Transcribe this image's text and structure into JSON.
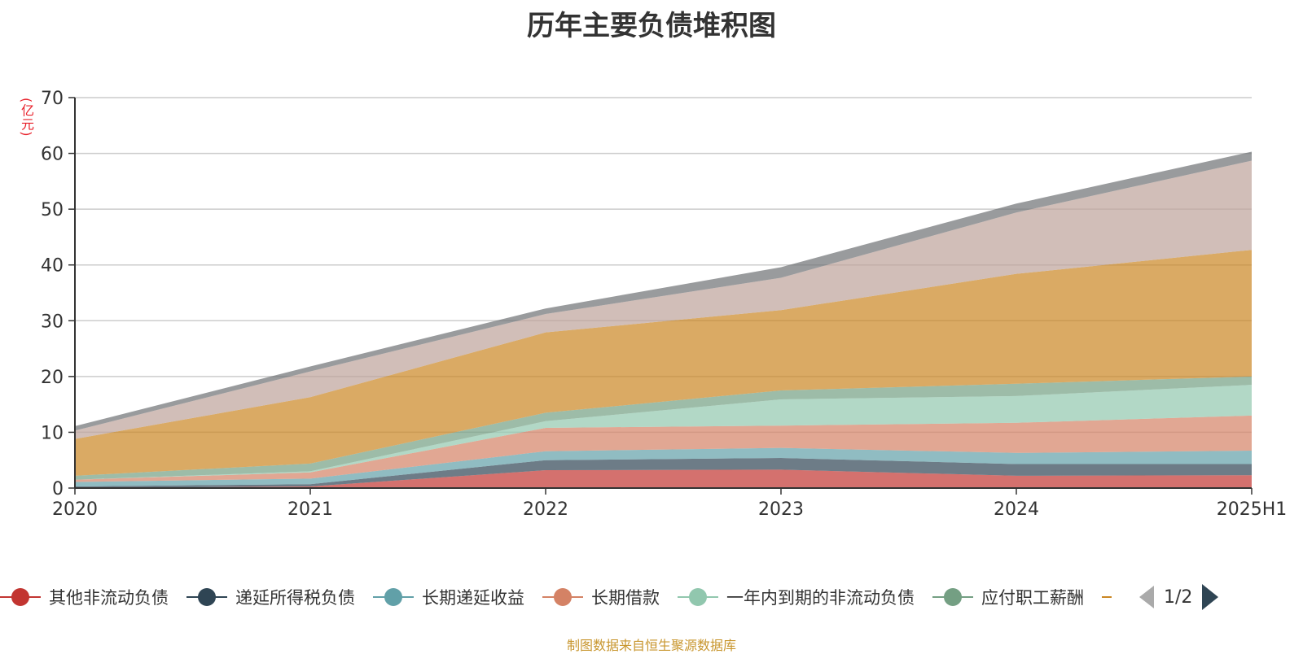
{
  "chart_data": {
    "type": "area",
    "stacked": true,
    "title": "历年主要负债堆积图",
    "ylabel": "(亿元)",
    "categories": [
      "2020",
      "2021",
      "2022",
      "2023",
      "2024",
      "2025H1"
    ],
    "ylim": [
      0,
      70
    ],
    "yticks": [
      0,
      10,
      20,
      30,
      40,
      50,
      60,
      70
    ],
    "grid": true,
    "series": [
      {
        "name": "其他非流动负债",
        "color": "#c23531",
        "values": [
          0.0,
          0.3,
          3.2,
          3.3,
          2.2,
          2.3
        ]
      },
      {
        "name": "递延所得税负债",
        "color": "#2f4554",
        "values": [
          0.3,
          0.4,
          1.8,
          2.1,
          2.1,
          2.0
        ]
      },
      {
        "name": "长期递延收益",
        "color": "#61a0a8",
        "values": [
          0.8,
          1.0,
          1.6,
          1.8,
          2.0,
          2.4
        ]
      },
      {
        "name": "长期借款",
        "color": "#d48265",
        "values": [
          0.4,
          1.1,
          4.2,
          4.0,
          5.4,
          6.3
        ]
      },
      {
        "name": "一年内到期的非流动负债",
        "color": "#91c7ae",
        "values": [
          0.0,
          0.2,
          1.2,
          4.7,
          4.8,
          5.5
        ]
      },
      {
        "name": "应付职工薪酬",
        "color": "#749f83",
        "values": [
          0.7,
          1.4,
          1.5,
          1.6,
          2.2,
          1.5
        ]
      },
      {
        "name": "",
        "color": "#ca8622",
        "values": [
          6.6,
          11.9,
          14.4,
          14.4,
          19.7,
          22.7
        ]
      },
      {
        "name": "",
        "color": "#bda29a",
        "values": [
          1.5,
          4.6,
          3.3,
          5.8,
          11.0,
          16.0
        ]
      },
      {
        "name": "",
        "color": "#6e7074",
        "values": [
          0.8,
          0.9,
          1.0,
          1.9,
          1.6,
          1.6
        ]
      }
    ],
    "legend_position": "bottom",
    "legend_page": "1/2"
  },
  "source_note": "制图数据来自恒生聚源数据库"
}
